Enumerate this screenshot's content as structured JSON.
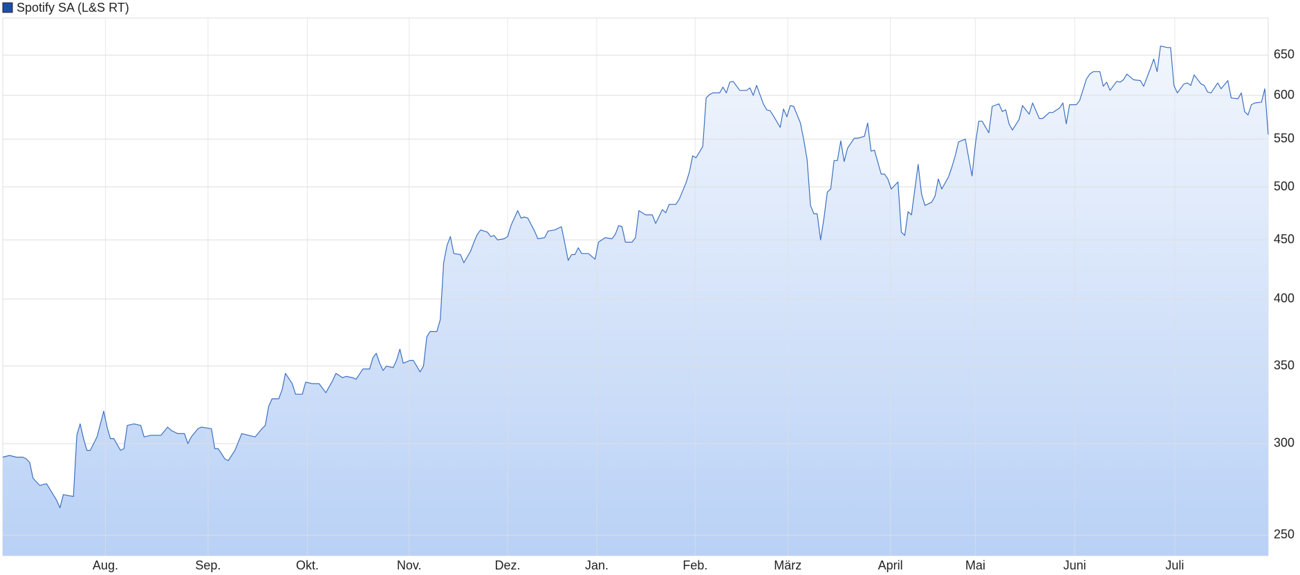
{
  "chart_data": {
    "type": "line",
    "log_y": true,
    "grid": true,
    "legend": "top-left",
    "x": [
      0,
      2,
      4,
      6,
      7,
      8,
      9,
      11,
      13,
      14,
      16,
      17,
      18,
      21,
      22,
      23,
      24,
      25,
      26,
      28,
      30,
      31,
      32,
      33,
      35,
      36,
      37,
      39,
      41,
      42,
      44,
      47,
      49,
      50,
      52,
      54,
      55,
      56,
      58,
      59,
      62,
      63,
      64,
      66,
      67,
      69,
      71,
      73,
      75,
      77,
      78,
      79,
      80,
      82,
      83,
      84,
      86,
      87,
      89,
      90,
      92,
      94,
      96,
      98,
      99,
      101,
      102,
      104,
      105,
      107,
      109,
      110,
      111,
      112,
      113,
      114,
      116,
      117,
      118,
      119,
      121,
      122,
      124,
      125,
      126,
      127,
      129,
      130,
      131,
      132,
      133,
      134,
      136,
      137,
      139,
      140,
      141,
      142,
      144,
      145,
      146,
      147,
      149,
      150,
      151,
      153,
      154,
      155,
      156,
      158,
      159,
      161,
      162,
      164,
      166,
      167,
      168,
      169,
      170,
      171,
      172,
      174,
      176,
      177,
      179,
      181,
      182,
      183,
      184,
      185,
      187,
      188,
      189,
      191,
      193,
      194,
      196,
      197,
      198,
      200,
      201,
      203,
      204,
      205,
      206,
      208,
      209,
      210,
      211,
      213,
      214,
      215,
      216,
      217,
      219,
      221,
      222,
      223,
      224,
      226,
      227,
      228,
      229,
      231,
      232,
      233,
      234,
      235,
      237,
      238,
      239,
      240,
      241,
      242,
      243,
      244,
      245,
      246,
      247,
      248,
      249,
      250,
      251,
      253,
      254,
      256,
      257,
      258,
      259,
      261,
      262,
      263,
      264,
      266,
      267,
      268,
      269,
      270,
      272,
      273,
      274,
      276,
      277,
      278,
      279,
      281,
      282,
      283,
      284,
      286,
      287,
      288,
      289,
      290,
      291,
      293,
      294,
      296,
      297,
      298,
      299,
      300,
      302,
      303,
      305,
      306,
      308,
      309,
      311,
      312,
      314,
      315,
      316,
      317,
      319,
      320,
      322,
      323,
      324,
      326,
      327,
      328,
      329,
      331,
      332,
      333,
      334,
      336,
      338,
      339,
      341,
      342,
      343,
      344,
      346,
      347,
      348,
      349,
      351,
      352,
      353,
      354,
      356,
      357,
      358,
      359,
      361,
      362,
      364,
      365,
      367,
      368,
      369,
      370,
      371,
      372,
      374,
      375,
      376
    ],
    "series": [
      {
        "name": "Spotify SA (L&S RT)",
        "color": "#3a6fc0",
        "values": [
          292,
          293,
          292,
          292,
          291,
          289,
          280,
          276,
          277,
          274,
          268,
          264,
          271,
          270,
          305,
          312,
          303,
          296,
          296,
          304,
          320,
          310,
          303,
          303,
          296,
          297,
          311,
          312,
          311,
          304,
          305,
          305,
          310,
          308,
          306,
          306,
          300,
          304,
          309,
          310,
          309,
          297,
          297,
          291,
          290,
          296,
          306,
          305,
          304,
          309,
          311,
          323,
          328,
          328,
          334,
          345,
          338,
          331,
          331,
          339,
          338,
          338,
          332,
          340,
          345,
          342,
          343,
          342,
          341,
          348,
          348,
          356,
          359,
          352,
          347,
          350,
          349,
          354,
          362,
          352,
          354,
          354,
          346,
          350,
          371,
          375,
          375,
          384,
          430,
          445,
          453,
          438,
          437,
          430,
          440,
          448,
          455,
          459,
          457,
          453,
          454,
          450,
          451,
          453,
          463,
          477,
          470,
          471,
          470,
          458,
          451,
          452,
          458,
          459,
          462,
          447,
          432,
          437,
          437,
          443,
          438,
          438,
          433,
          448,
          452,
          451,
          455,
          463,
          462,
          448,
          448,
          452,
          477,
          473,
          473,
          465,
          478,
          475,
          483,
          483,
          488,
          504,
          515,
          532,
          530,
          542,
          597,
          601,
          603,
          603,
          610,
          603,
          616,
          617,
          606,
          606,
          609,
          600,
          612,
          590,
          583,
          582,
          576,
          563,
          584,
          575,
          588,
          587,
          568,
          549,
          528,
          482,
          474,
          474,
          450,
          470,
          495,
          498,
          527,
          527,
          548,
          526,
          540,
          551,
          551,
          553,
          568,
          537,
          538,
          513,
          513,
          508,
          498,
          505,
          457,
          454,
          476,
          473,
          523,
          493,
          482,
          485,
          491,
          508,
          498,
          510,
          520,
          532,
          547,
          550,
          530,
          511,
          545,
          570,
          570,
          557,
          587,
          590,
          581,
          583,
          567,
          560,
          572,
          588,
          578,
          591,
          573,
          573,
          580,
          580,
          585,
          591,
          567,
          589,
          589,
          594,
          620,
          626,
          629,
          629,
          611,
          616,
          606,
          617,
          616,
          619,
          626,
          619,
          618,
          611,
          633,
          645,
          629,
          662,
          660,
          660,
          612,
          603,
          614,
          615,
          612,
          625,
          614,
          612,
          604,
          603,
          615,
          608,
          618,
          597,
          596,
          603,
          581,
          577,
          589,
          591,
          592,
          608,
          555
        ]
      }
    ],
    "xlim": [
      0,
      376
    ],
    "xticks": [
      {
        "value": 30.5,
        "label": "Aug."
      },
      {
        "value": 61,
        "label": "Sep."
      },
      {
        "value": 90.5,
        "label": "Okt."
      },
      {
        "value": 120.75,
        "label": "Nov."
      },
      {
        "value": 150,
        "label": "Dez."
      },
      {
        "value": 176.5,
        "label": "Jan."
      },
      {
        "value": 205.75,
        "label": "Feb."
      },
      {
        "value": 233.25,
        "label": "März"
      },
      {
        "value": 263.75,
        "label": "April"
      },
      {
        "value": 289,
        "label": "Mai"
      },
      {
        "value": 318.5,
        "label": "Juni"
      },
      {
        "value": 348.25,
        "label": "Juli"
      }
    ],
    "ylim": [
      240,
      700
    ],
    "yticks": [
      250,
      300,
      350,
      400,
      450,
      500,
      550,
      600,
      650
    ]
  }
}
